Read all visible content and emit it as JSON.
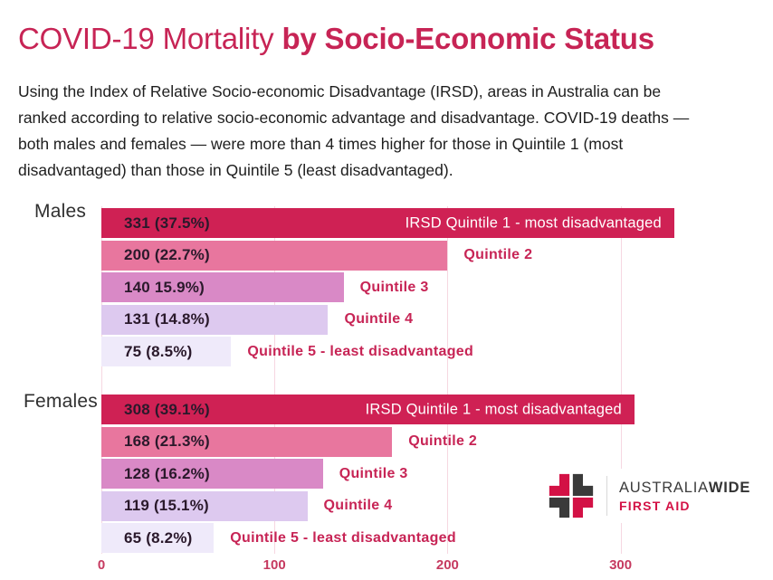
{
  "title": {
    "light": "COVID-19 Mortality ",
    "bold": "by Socio-Economic Status",
    "color": "#c72455"
  },
  "intro": "Using the Index of Relative Socio-economic Disadvantage (IRSD), areas in Australia can be ranked according to relative socio-economic advantage and disadvantage. COVID-19 deaths — both males and females — were more than 4 times higher for those in Quintile 1 (most disadvantaged) than those in Quintile 5 (least disadvantaged).",
  "chart_data": {
    "type": "bar",
    "orientation": "horizontal",
    "grid": true,
    "legend_position": "none",
    "x_axis": {
      "ticks": [
        0,
        100,
        200,
        300
      ],
      "tick_labels": [
        "0",
        "100",
        "200",
        "300"
      ],
      "range": [
        0,
        350
      ]
    },
    "colors": {
      "quintile1": "#cf2154",
      "quintile2": "#e8769e",
      "quintile3": "#d989c6",
      "quintile4": "#ddc9ef",
      "quintile5": "#efeafa",
      "category_label": "#c72455",
      "gridline": "#f6d7e1",
      "axis_label": "#c63a60"
    },
    "groups": [
      {
        "label": "Males",
        "bars": [
          {
            "value": 331,
            "pct": 37.5,
            "value_label": "331 (37.5%)",
            "category": "IRSD Quintile 1 - most disadvantaged",
            "label_placement": "inside",
            "color": "#cf2154",
            "category_color": "#ffffff"
          },
          {
            "value": 200,
            "pct": 22.7,
            "value_label": "200 (22.7%)",
            "category": "Quintile 2",
            "label_placement": "outside",
            "color": "#e8769e",
            "category_color": "#c72455"
          },
          {
            "value": 140,
            "pct": 15.9,
            "value_label": "140 15.9%)",
            "category": "Quintile 3",
            "label_placement": "outside",
            "color": "#d989c6",
            "category_color": "#c72455"
          },
          {
            "value": 131,
            "pct": 14.8,
            "value_label": "131 (14.8%)",
            "category": "Quintile 4",
            "label_placement": "outside",
            "color": "#ddc9ef",
            "category_color": "#c72455"
          },
          {
            "value": 75,
            "pct": 8.5,
            "value_label": "75 (8.5%)",
            "category": "Quintile 5 - least disadvantaged",
            "label_placement": "outside",
            "color": "#efeafa",
            "category_color": "#c72455"
          }
        ]
      },
      {
        "label": "Females",
        "bars": [
          {
            "value": 308,
            "pct": 39.1,
            "value_label": "308 (39.1%)",
            "category": "IRSD Quintile 1 - most disadvantaged",
            "label_placement": "inside",
            "color": "#cf2154",
            "category_color": "#ffffff"
          },
          {
            "value": 168,
            "pct": 21.3,
            "value_label": "168 (21.3%)",
            "category": "Quintile 2",
            "label_placement": "outside",
            "color": "#e8769e",
            "category_color": "#c72455"
          },
          {
            "value": 128,
            "pct": 16.2,
            "value_label": "128 (16.2%)",
            "category": "Quintile 3",
            "label_placement": "outside",
            "color": "#d989c6",
            "category_color": "#c72455"
          },
          {
            "value": 119,
            "pct": 15.1,
            "value_label": "119 (15.1%)",
            "category": "Quintile 4",
            "label_placement": "outside",
            "color": "#ddc9ef",
            "category_color": "#c72455"
          },
          {
            "value": 65,
            "pct": 8.2,
            "value_label": "65 (8.2%)",
            "category": "Quintile 5 - least disadvantaged",
            "label_placement": "outside",
            "color": "#efeafa",
            "category_color": "#c72455"
          }
        ]
      }
    ]
  },
  "logo": {
    "brand_regular": "AUSTRALIA",
    "brand_bold": "WIDE",
    "tagline": "FIRST AID",
    "red": "#d31145",
    "dark": "#3a3a3a"
  }
}
